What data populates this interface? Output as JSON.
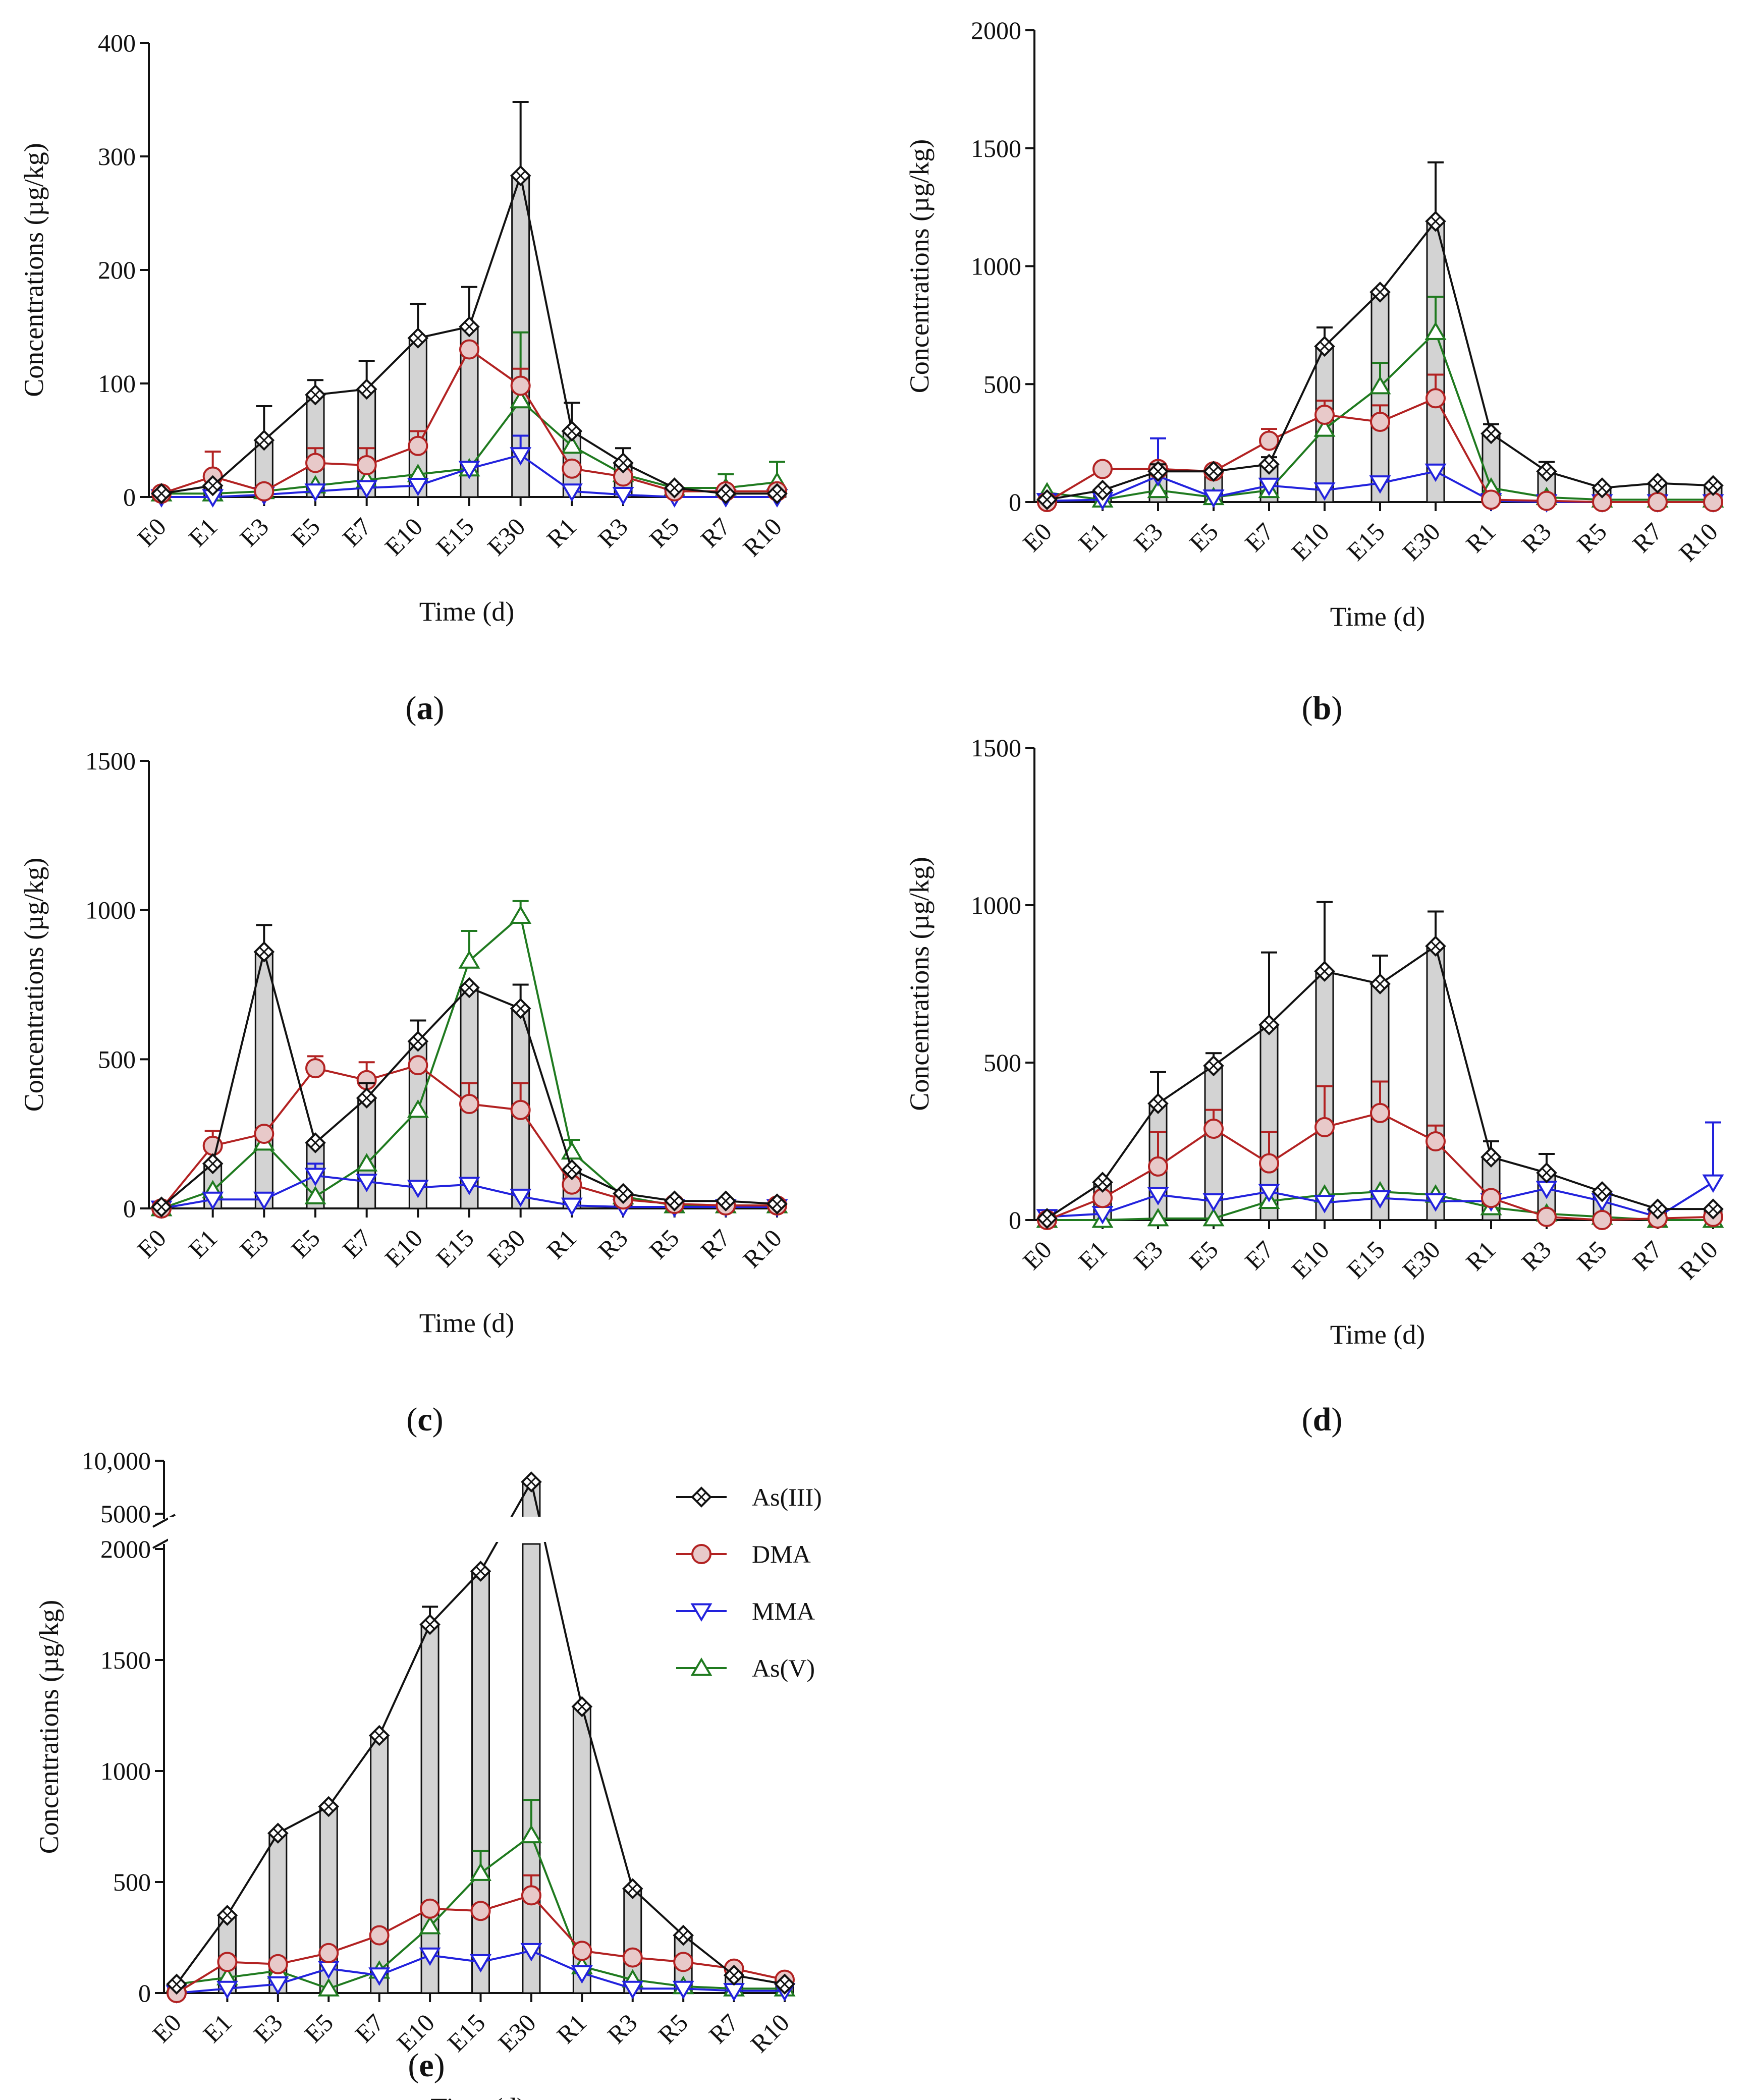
{
  "figure": {
    "colors": {
      "As(III)": "#111111",
      "DMA": "#b22222",
      "MMA": "#2222dd",
      "As(V)": "#1f7a1f",
      "bar_fill": "#d3d3d3"
    },
    "legend": [
      "As(III)",
      "DMA",
      "MMA",
      "As(V)"
    ]
  },
  "chart_data": [
    {
      "panel": "a",
      "label": "a",
      "type": "bar+line",
      "xlabel": "Time (d)",
      "ylabel": "Concentrations (µg/kg)",
      "categories": [
        "E0",
        "E1",
        "E3",
        "E5",
        "E7",
        "E10",
        "E15",
        "E30",
        "R1",
        "R3",
        "R5",
        "R7",
        "R10"
      ],
      "ylim": [
        0,
        400
      ],
      "yticks": [
        0,
        100,
        200,
        300,
        400
      ],
      "ytick_labels": [
        "0",
        "100",
        "200",
        "300",
        "400"
      ],
      "series": [
        {
          "name": "As(III)",
          "values": [
            3,
            10,
            50,
            90,
            95,
            140,
            150,
            283,
            58,
            30,
            8,
            3,
            3
          ],
          "err": [
            0,
            0,
            30,
            13,
            25,
            30,
            35,
            65,
            25,
            13,
            0,
            0,
            0
          ]
        },
        {
          "name": "DMA",
          "values": [
            3,
            18,
            5,
            30,
            28,
            45,
            130,
            98,
            25,
            18,
            5,
            5,
            5
          ],
          "err": [
            0,
            22,
            0,
            13,
            15,
            13,
            0,
            15,
            0,
            0,
            0,
            0,
            0
          ]
        },
        {
          "name": "MMA",
          "values": [
            0,
            0,
            2,
            5,
            8,
            10,
            25,
            37,
            5,
            2,
            0,
            0,
            0
          ],
          "err": [
            0,
            0,
            0,
            0,
            0,
            0,
            5,
            17,
            0,
            0,
            0,
            0,
            0
          ]
        },
        {
          "name": "As(V)",
          "values": [
            3,
            3,
            5,
            10,
            15,
            20,
            25,
            85,
            45,
            20,
            8,
            8,
            13
          ],
          "err": [
            0,
            0,
            0,
            0,
            0,
            0,
            0,
            60,
            0,
            0,
            0,
            12,
            18
          ]
        }
      ]
    },
    {
      "panel": "b",
      "label": "b",
      "type": "bar+line",
      "xlabel": "Time (d)",
      "ylabel": "Concentrations (µg/kg)",
      "categories": [
        "E0",
        "E1",
        "E3",
        "E5",
        "E7",
        "E10",
        "E15",
        "E30",
        "R1",
        "R3",
        "R5",
        "R7",
        "R10"
      ],
      "ylim": [
        0,
        2000
      ],
      "yticks": [
        0,
        500,
        1000,
        1500,
        2000
      ],
      "ytick_labels": [
        "0",
        "500",
        "1000",
        "1500",
        "2000"
      ],
      "series": [
        {
          "name": "As(III)",
          "values": [
            10,
            50,
            130,
            130,
            160,
            660,
            890,
            1190,
            290,
            130,
            60,
            80,
            70
          ],
          "err": [
            0,
            0,
            30,
            0,
            30,
            80,
            0,
            250,
            40,
            40,
            0,
            0,
            0
          ]
        },
        {
          "name": "DMA",
          "values": [
            0,
            140,
            140,
            130,
            260,
            370,
            340,
            440,
            10,
            5,
            0,
            0,
            0
          ],
          "err": [
            0,
            0,
            0,
            0,
            50,
            60,
            70,
            100,
            0,
            0,
            0,
            0,
            0
          ]
        },
        {
          "name": "MMA",
          "values": [
            5,
            10,
            110,
            20,
            70,
            50,
            80,
            130,
            5,
            0,
            0,
            0,
            0
          ],
          "err": [
            0,
            0,
            160,
            0,
            0,
            0,
            0,
            20,
            0,
            0,
            0,
            0,
            0
          ]
        },
        {
          "name": "As(V)",
          "values": [
            40,
            10,
            50,
            20,
            50,
            310,
            490,
            720,
            60,
            20,
            10,
            10,
            10
          ],
          "err": [
            0,
            0,
            0,
            0,
            0,
            0,
            100,
            150,
            0,
            0,
            0,
            0,
            0
          ]
        }
      ]
    },
    {
      "panel": "c",
      "label": "c",
      "type": "bar+line",
      "xlabel": "Time (d)",
      "ylabel": "Concentrations (µg/kg)",
      "categories": [
        "E0",
        "E1",
        "E3",
        "E5",
        "E7",
        "E10",
        "E15",
        "E30",
        "R1",
        "R3",
        "R5",
        "R7",
        "R10"
      ],
      "ylim": [
        0,
        1500
      ],
      "yticks": [
        0,
        500,
        1000,
        1500
      ],
      "ytick_labels": [
        "0",
        "500",
        "1000",
        "1500"
      ],
      "series": [
        {
          "name": "As(III)",
          "values": [
            5,
            150,
            860,
            220,
            370,
            560,
            740,
            670,
            130,
            50,
            25,
            25,
            15
          ],
          "err": [
            0,
            0,
            90,
            0,
            50,
            70,
            0,
            80,
            0,
            0,
            0,
            0,
            0
          ]
        },
        {
          "name": "DMA",
          "values": [
            0,
            210,
            250,
            470,
            430,
            480,
            350,
            330,
            80,
            30,
            15,
            10,
            10
          ],
          "err": [
            0,
            50,
            0,
            40,
            60,
            0,
            70,
            90,
            0,
            0,
            0,
            0,
            0
          ]
        },
        {
          "name": "MMA",
          "values": [
            0,
            30,
            30,
            110,
            90,
            70,
            80,
            40,
            10,
            5,
            5,
            5,
            5
          ],
          "err": [
            0,
            0,
            0,
            40,
            0,
            0,
            0,
            0,
            0,
            0,
            0,
            0,
            0
          ]
        },
        {
          "name": "As(V)",
          "values": [
            0,
            60,
            220,
            40,
            150,
            330,
            830,
            980,
            190,
            40,
            10,
            10,
            10
          ],
          "err": [
            0,
            0,
            0,
            0,
            0,
            0,
            100,
            50,
            40,
            0,
            0,
            0,
            0
          ]
        }
      ]
    },
    {
      "panel": "d",
      "label": "d",
      "type": "bar+line",
      "xlabel": "Time (d)",
      "ylabel": "Concentrations (µg/kg)",
      "categories": [
        "E0",
        "E1",
        "E3",
        "E5",
        "E7",
        "E10",
        "E15",
        "E30",
        "R1",
        "R3",
        "R5",
        "R7",
        "R10"
      ],
      "ylim": [
        0,
        1500
      ],
      "yticks": [
        0,
        500,
        1000,
        1500
      ],
      "ytick_labels": [
        "0",
        "500",
        "1000",
        "1500"
      ],
      "series": [
        {
          "name": "As(III)",
          "values": [
            5,
            120,
            370,
            490,
            620,
            790,
            750,
            870,
            200,
            150,
            90,
            35,
            35
          ],
          "err": [
            0,
            0,
            100,
            40,
            230,
            220,
            90,
            110,
            50,
            60,
            0,
            0,
            0
          ]
        },
        {
          "name": "DMA",
          "values": [
            0,
            70,
            170,
            290,
            180,
            295,
            340,
            250,
            70,
            10,
            0,
            5,
            10
          ],
          "err": [
            0,
            0,
            110,
            60,
            100,
            130,
            100,
            50,
            0,
            0,
            0,
            0,
            0
          ]
        },
        {
          "name": "MMA",
          "values": [
            10,
            20,
            80,
            60,
            90,
            55,
            70,
            60,
            60,
            100,
            60,
            10,
            120
          ],
          "err": [
            0,
            0,
            0,
            0,
            0,
            0,
            0,
            0,
            0,
            0,
            0,
            0,
            190
          ]
        },
        {
          "name": "As(V)",
          "values": [
            0,
            0,
            5,
            5,
            60,
            80,
            90,
            80,
            40,
            20,
            10,
            0,
            0
          ],
          "err": [
            0,
            0,
            0,
            0,
            0,
            0,
            0,
            0,
            0,
            0,
            0,
            0,
            0
          ]
        }
      ]
    },
    {
      "panel": "e",
      "label": "e",
      "type": "bar+line",
      "xlabel": "Time (d)",
      "ylabel": "Concentrations (µg/kg)",
      "categories": [
        "E0",
        "E1",
        "E3",
        "E5",
        "E7",
        "E10",
        "E15",
        "E30",
        "R1",
        "R3",
        "R5",
        "R7",
        "R10"
      ],
      "ylim": [
        0,
        10000
      ],
      "axis_break": [
        2000,
        5000
      ],
      "yticks": [
        0,
        500,
        1000,
        1500,
        2000,
        5000,
        10000
      ],
      "ytick_labels": [
        "0",
        "500",
        "1000",
        "1500",
        "2000",
        "5000",
        "10,000"
      ],
      "legend": [
        "As(III)",
        "DMA",
        "MMA",
        "As(V)"
      ],
      "series": [
        {
          "name": "As(III)",
          "values": [
            40,
            350,
            720,
            840,
            1160,
            1660,
            1900,
            8000,
            1290,
            470,
            260,
            80,
            40
          ],
          "err": [
            0,
            0,
            0,
            0,
            0,
            80,
            0,
            0,
            0,
            0,
            0,
            0,
            0
          ]
        },
        {
          "name": "DMA",
          "values": [
            0,
            140,
            130,
            180,
            260,
            380,
            370,
            440,
            190,
            160,
            140,
            110,
            60
          ],
          "err": [
            0,
            0,
            0,
            0,
            0,
            0,
            0,
            90,
            0,
            0,
            0,
            0,
            0
          ]
        },
        {
          "name": "MMA",
          "values": [
            0,
            20,
            40,
            110,
            80,
            170,
            140,
            190,
            90,
            20,
            20,
            10,
            10
          ],
          "err": [
            0,
            0,
            0,
            0,
            0,
            0,
            0,
            0,
            0,
            0,
            0,
            0,
            0
          ]
        },
        {
          "name": "As(V)",
          "values": [
            40,
            70,
            100,
            20,
            100,
            300,
            540,
            710,
            120,
            60,
            30,
            20,
            20
          ],
          "err": [
            0,
            0,
            0,
            0,
            0,
            0,
            100,
            160,
            0,
            0,
            0,
            0,
            0
          ]
        }
      ]
    }
  ]
}
